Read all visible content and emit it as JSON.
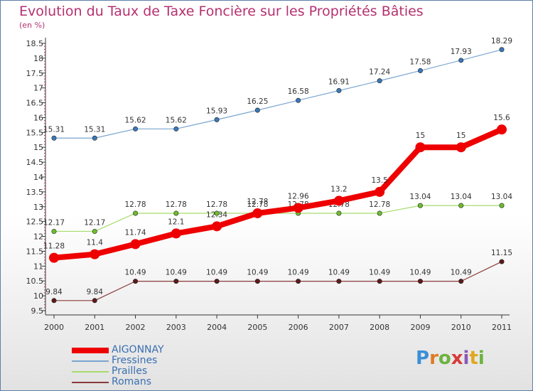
{
  "header": {
    "title": "Evolution du Taux de Taxe Foncière sur les Propriétés Bâties",
    "subtitle": "(en %)"
  },
  "logo": {
    "text": "Proxiti",
    "letter_colors": [
      "#3b8fd6",
      "#e07b25",
      "#6cb33f",
      "#d83a3a",
      "#8a59b5",
      "#e0a81f",
      "#6cb33f"
    ]
  },
  "colors": {
    "title": "#b5306f",
    "axis_text": "#333333",
    "grid_tick": "#b5306f"
  },
  "chart_data": {
    "type": "line",
    "title": "Evolution du Taux de Taxe Foncière sur les Propriétés Bâties",
    "ylabel": "(en %)",
    "xlabel": "",
    "ylim": [
      9.5,
      18.5
    ],
    "yticks": [
      "9.5",
      "10",
      "10.5",
      "11",
      "11.5",
      "12",
      "12.5",
      "13",
      "13.5",
      "14",
      "14.5",
      "15",
      "15.5",
      "16",
      "16.5",
      "17",
      "17.5",
      "18",
      "18.5"
    ],
    "categories": [
      "2000",
      "2001",
      "2002",
      "2003",
      "2004",
      "2005",
      "2006",
      "2007",
      "2008",
      "2009",
      "2010",
      "2011"
    ],
    "grid": false,
    "legend_position": "bottom-left",
    "series": [
      {
        "name": "Fressines",
        "color": "#7aa5d0",
        "marker": "#3a78b8",
        "values": [
          15.31,
          15.31,
          15.62,
          15.62,
          15.93,
          16.25,
          16.58,
          16.91,
          17.24,
          17.58,
          17.93,
          18.29
        ],
        "labels": [
          "15.31",
          "15.31",
          "15.62",
          "15.62",
          "15.93",
          "16.25",
          "16.58",
          "16.91",
          "17.24",
          "17.58",
          "17.93",
          "18.29"
        ]
      },
      {
        "name": "Prailles",
        "color": "#a6dc6e",
        "marker": "#6cbf2c",
        "values": [
          12.17,
          12.17,
          12.78,
          12.78,
          12.78,
          12.78,
          12.78,
          12.78,
          12.78,
          13.04,
          13.04,
          13.04
        ],
        "labels": [
          "12.17",
          "12.17",
          "12.78",
          "12.78",
          "12.78",
          "12.78",
          "12.78",
          "12.78",
          "12.78",
          "13.04",
          "13.04",
          "13.04"
        ]
      },
      {
        "name": "Romans",
        "color": "#8a3a3a",
        "marker": "#5e1a1a",
        "values": [
          9.84,
          9.84,
          10.49,
          10.49,
          10.49,
          10.49,
          10.49,
          10.49,
          10.49,
          10.49,
          10.49,
          11.15
        ],
        "labels": [
          "9.84",
          "9.84",
          "10.49",
          "10.49",
          "10.49",
          "10.49",
          "10.49",
          "10.49",
          "10.49",
          "10.49",
          "10.49",
          "11.15"
        ]
      },
      {
        "name": "AIGONNAY",
        "color": "#ee0000",
        "marker": "#ee0000",
        "values": [
          11.28,
          11.4,
          11.74,
          12.1,
          12.34,
          12.78,
          12.96,
          13.2,
          13.5,
          15,
          15,
          15.6
        ],
        "labels": [
          "11.28",
          "11.4",
          "11.74",
          "12.1",
          "12.34",
          "12.78",
          "12.96",
          "13.2",
          "13.5",
          "15",
          "15",
          "15.6"
        ]
      }
    ],
    "legend": [
      {
        "name": "AIGONNAY",
        "color": "#ee0000",
        "text_color": "#3a6fb0"
      },
      {
        "name": "Fressines",
        "color": "#7aa5d0",
        "text_color": "#3a6fb0"
      },
      {
        "name": "Prailles",
        "color": "#a6dc6e",
        "text_color": "#3a6fb0"
      },
      {
        "name": "Romans",
        "color": "#8a3a3a",
        "text_color": "#3a6fb0"
      }
    ]
  }
}
